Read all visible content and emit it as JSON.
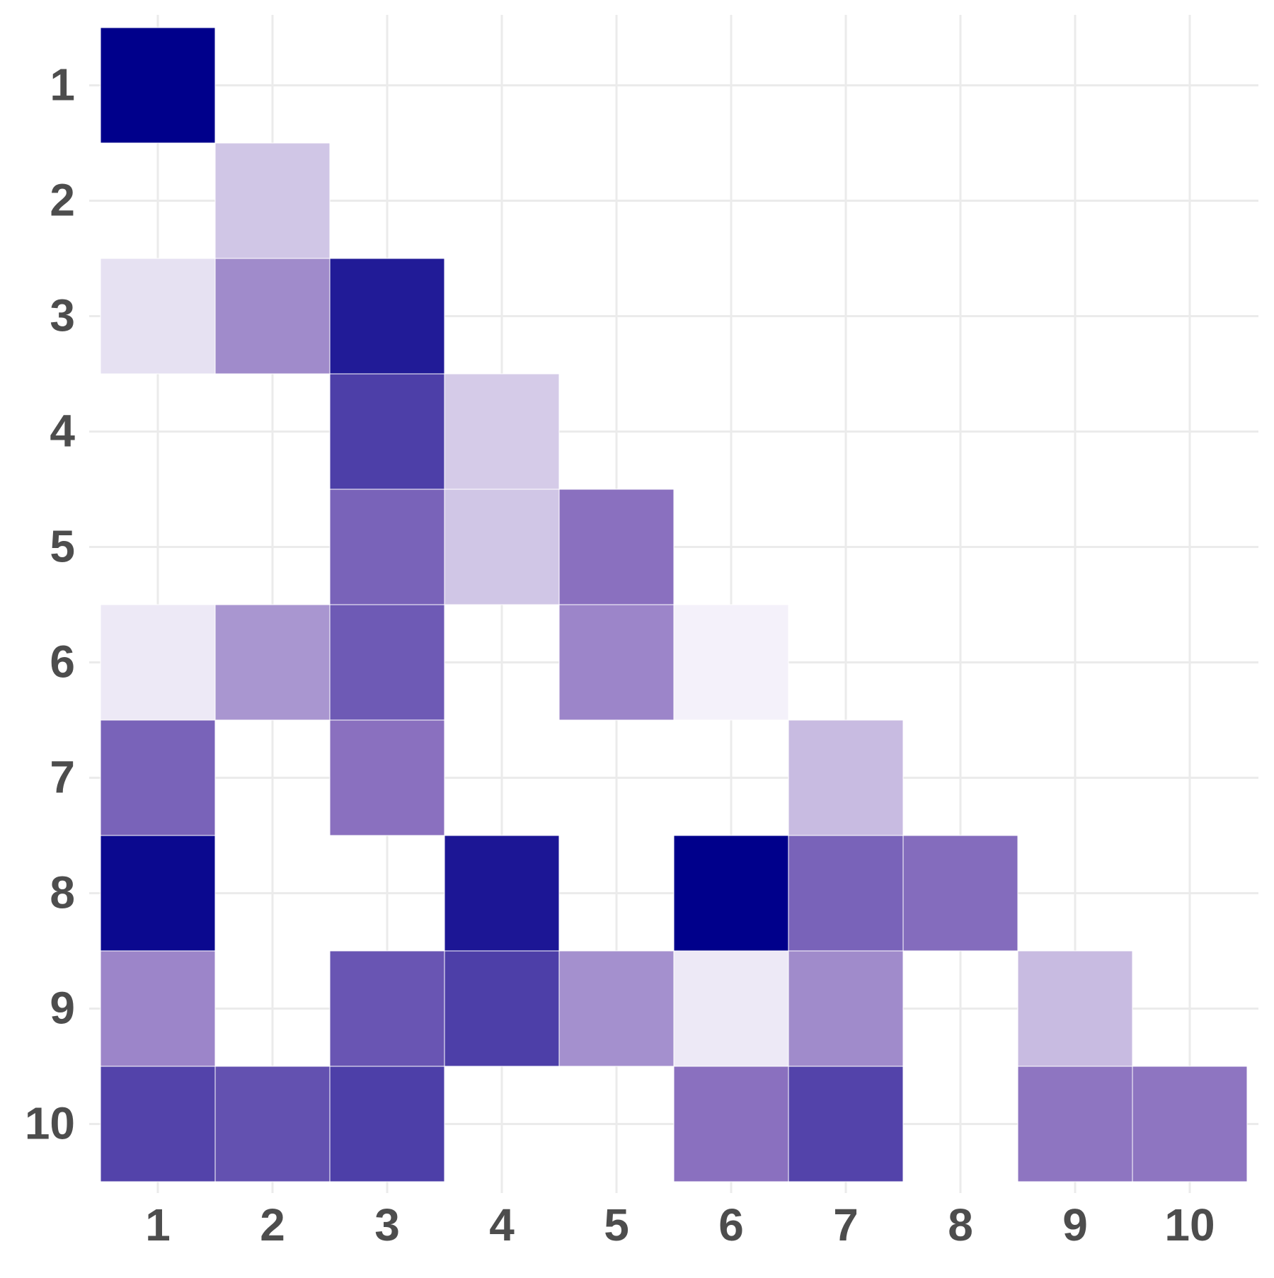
{
  "chart_data": {
    "type": "heatmap",
    "x": [
      1,
      2,
      3,
      4,
      5,
      6,
      7,
      8,
      9,
      10
    ],
    "y": [
      1,
      2,
      3,
      4,
      5,
      6,
      7,
      8,
      9,
      10
    ],
    "values": [
      [
        1.0,
        null,
        null,
        null,
        null,
        null,
        null,
        null,
        null,
        null
      ],
      [
        null,
        0.18,
        null,
        null,
        null,
        null,
        null,
        null,
        null,
        null
      ],
      [
        0.08,
        0.4,
        0.88,
        null,
        null,
        null,
        null,
        null,
        null,
        null
      ],
      [
        null,
        null,
        0.72,
        0.16,
        null,
        null,
        null,
        null,
        null,
        null
      ],
      [
        null,
        null,
        0.56,
        0.18,
        0.5,
        null,
        null,
        null,
        null,
        null
      ],
      [
        0.05,
        0.36,
        0.6,
        null,
        0.42,
        0.02,
        null,
        null,
        null,
        null
      ],
      [
        0.56,
        null,
        0.5,
        null,
        null,
        null,
        0.22,
        null,
        null,
        null
      ],
      [
        0.96,
        null,
        null,
        0.9,
        null,
        1.0,
        0.56,
        0.52,
        null,
        null
      ],
      [
        0.42,
        null,
        0.62,
        0.72,
        0.38,
        0.05,
        0.4,
        null,
        0.22,
        null
      ],
      [
        0.7,
        0.64,
        0.72,
        null,
        null,
        0.5,
        0.7,
        null,
        0.48,
        0.48
      ]
    ],
    "colorscale": [
      "#f8f6fc",
      "#8a70bf",
      "#00008b"
    ],
    "grid": true
  }
}
